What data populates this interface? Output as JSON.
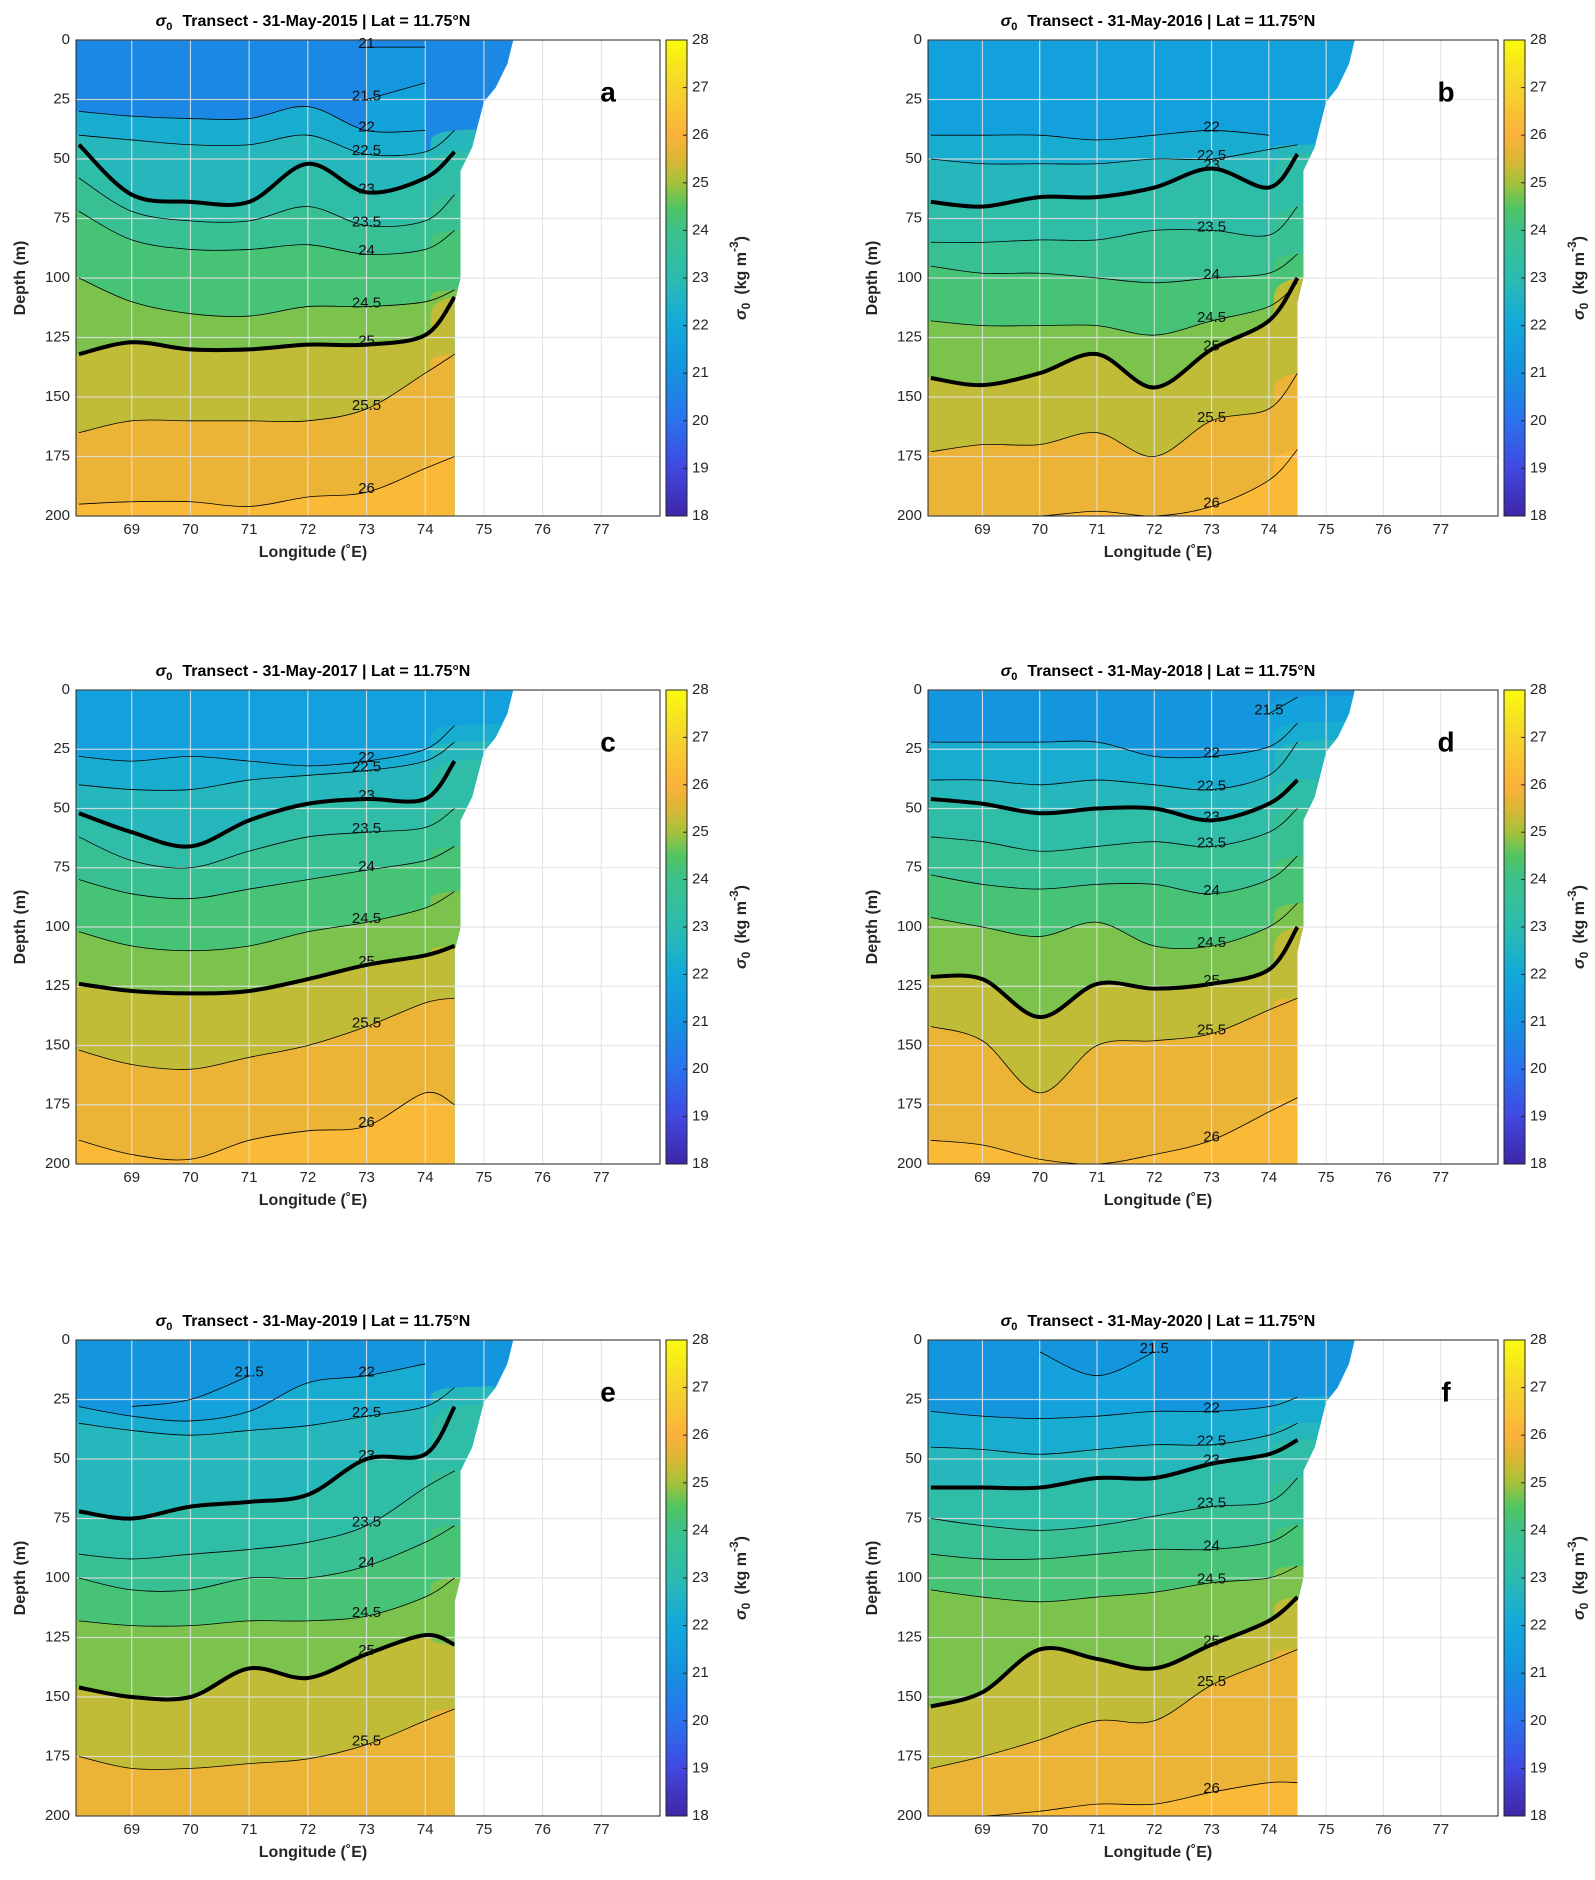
{
  "chart_data": [
    {
      "type": "contour",
      "title_symbol": "σ",
      "title_subscript": "0",
      "title": "Transect - 31-May-2015 | Lat = 11.75°N",
      "panel": "a",
      "xlabel": "Longitude (˚E)",
      "ylabel": "Depth (m)",
      "colorbar_label": [
        "σ",
        "0",
        "(kg m",
        "-3",
        ")"
      ],
      "colormap": "parula",
      "x": [
        68.1,
        69,
        70,
        71,
        72,
        73,
        74,
        74.5
      ],
      "xlim": [
        68.05,
        78
      ],
      "xticks": [
        69,
        70,
        71,
        72,
        73,
        74,
        75,
        76,
        77
      ],
      "ylim": [
        0,
        200
      ],
      "y_reversed": true,
      "yticks": [
        0,
        25,
        50,
        75,
        100,
        125,
        150,
        175,
        200
      ],
      "grid": true,
      "clim": [
        18,
        28
      ],
      "cticks": [
        18,
        19,
        20,
        21,
        22,
        23,
        24,
        25,
        26,
        27,
        28
      ],
      "contours": [
        {
          "level": 21,
          "values": [
            null,
            null,
            null,
            null,
            null,
            3,
            3,
            null
          ]
        },
        {
          "level": 21.5,
          "values": [
            null,
            null,
            null,
            null,
            null,
            25,
            18,
            null
          ]
        },
        {
          "level": 22,
          "values": [
            30,
            32,
            33,
            33,
            28,
            38,
            38,
            null
          ]
        },
        {
          "level": 22.5,
          "values": [
            40,
            42,
            44,
            44,
            40,
            48,
            47,
            38
          ]
        },
        {
          "level": 23,
          "bold": true,
          "values": [
            44,
            65,
            68,
            68,
            52,
            64,
            58,
            47
          ]
        },
        {
          "level": 23.5,
          "values": [
            58,
            72,
            76,
            76,
            70,
            78,
            76,
            65
          ]
        },
        {
          "level": 24,
          "values": [
            72,
            84,
            88,
            88,
            86,
            90,
            88,
            80
          ]
        },
        {
          "level": 24.5,
          "values": [
            100,
            110,
            115,
            116,
            112,
            112,
            110,
            105
          ]
        },
        {
          "level": 25,
          "bold": true,
          "values": [
            132,
            127,
            130,
            130,
            128,
            128,
            124,
            108
          ]
        },
        {
          "level": 25.5,
          "values": [
            165,
            160,
            160,
            160,
            160,
            155,
            140,
            132
          ]
        },
        {
          "level": 26,
          "values": [
            195,
            194,
            194,
            196,
            192,
            190,
            180,
            175
          ]
        }
      ]
    },
    {
      "type": "contour",
      "title_symbol": "σ",
      "title_subscript": "0",
      "title": "Transect - 31-May-2016 | Lat = 11.75°N",
      "panel": "b",
      "xlabel": "Longitude (˚E)",
      "ylabel": "Depth (m)",
      "colorbar_label": [
        "σ",
        "0",
        "(kg m",
        "-3",
        ")"
      ],
      "colormap": "parula",
      "x": [
        68.1,
        69,
        70,
        71,
        72,
        73,
        74,
        74.5
      ],
      "xlim": [
        68.05,
        78
      ],
      "xticks": [
        69,
        70,
        71,
        72,
        73,
        74,
        75,
        76,
        77
      ],
      "ylim": [
        0,
        200
      ],
      "y_reversed": true,
      "yticks": [
        0,
        25,
        50,
        75,
        100,
        125,
        150,
        175,
        200
      ],
      "grid": true,
      "clim": [
        18,
        28
      ],
      "cticks": [
        18,
        19,
        20,
        21,
        22,
        23,
        24,
        25,
        26,
        27,
        28
      ],
      "contours": [
        {
          "level": 22,
          "values": [
            40,
            40,
            40,
            42,
            40,
            38,
            40,
            null
          ]
        },
        {
          "level": 22.5,
          "values": [
            50,
            52,
            52,
            52,
            50,
            50,
            46,
            44
          ]
        },
        {
          "level": 23,
          "bold": true,
          "values": [
            68,
            70,
            66,
            66,
            62,
            54,
            62,
            48
          ]
        },
        {
          "level": 23.5,
          "values": [
            85,
            85,
            84,
            84,
            80,
            80,
            82,
            70
          ]
        },
        {
          "level": 24,
          "values": [
            95,
            98,
            98,
            100,
            102,
            100,
            98,
            90
          ]
        },
        {
          "level": 24.5,
          "values": [
            118,
            120,
            120,
            120,
            124,
            118,
            112,
            102
          ]
        },
        {
          "level": 25,
          "bold": true,
          "values": [
            142,
            145,
            140,
            132,
            146,
            130,
            118,
            100
          ]
        },
        {
          "level": 25.5,
          "values": [
            173,
            170,
            170,
            165,
            175,
            160,
            155,
            140
          ]
        },
        {
          "level": 26,
          "values": [
            200,
            200,
            200,
            198,
            200,
            196,
            185,
            172
          ]
        }
      ]
    },
    {
      "type": "contour",
      "title_symbol": "σ",
      "title_subscript": "0",
      "title": "Transect - 31-May-2017 | Lat = 11.75°N",
      "panel": "c",
      "xlabel": "Longitude (˚E)",
      "ylabel": "Depth (m)",
      "colorbar_label": [
        "σ",
        "0",
        "(kg m",
        "-3",
        ")"
      ],
      "colormap": "parula",
      "x": [
        68.1,
        69,
        70,
        71,
        72,
        73,
        74,
        74.5
      ],
      "xlim": [
        68.05,
        78
      ],
      "xticks": [
        69,
        70,
        71,
        72,
        73,
        74,
        75,
        76,
        77
      ],
      "ylim": [
        0,
        200
      ],
      "y_reversed": true,
      "yticks": [
        0,
        25,
        50,
        75,
        100,
        125,
        150,
        175,
        200
      ],
      "grid": true,
      "clim": [
        18,
        28
      ],
      "cticks": [
        18,
        19,
        20,
        21,
        22,
        23,
        24,
        25,
        26,
        27,
        28
      ],
      "contours": [
        {
          "level": 22,
          "values": [
            28,
            30,
            28,
            30,
            32,
            30,
            25,
            15
          ]
        },
        {
          "level": 22.5,
          "values": [
            40,
            42,
            42,
            38,
            36,
            34,
            30,
            22
          ]
        },
        {
          "level": 23,
          "bold": true,
          "values": [
            52,
            60,
            66,
            55,
            48,
            46,
            46,
            30
          ]
        },
        {
          "level": 23.5,
          "values": [
            62,
            72,
            75,
            68,
            62,
            60,
            58,
            50
          ]
        },
        {
          "level": 24,
          "values": [
            80,
            86,
            88,
            84,
            80,
            76,
            72,
            66
          ]
        },
        {
          "level": 24.5,
          "values": [
            102,
            108,
            110,
            108,
            102,
            98,
            92,
            85
          ]
        },
        {
          "level": 25,
          "bold": true,
          "values": [
            124,
            127,
            128,
            127,
            122,
            116,
            112,
            108
          ]
        },
        {
          "level": 25.5,
          "values": [
            152,
            158,
            160,
            155,
            150,
            142,
            132,
            130
          ]
        },
        {
          "level": 26,
          "values": [
            190,
            196,
            198,
            190,
            186,
            184,
            170,
            175
          ]
        }
      ]
    },
    {
      "type": "contour",
      "title_symbol": "σ",
      "title_subscript": "0",
      "title": "Transect - 31-May-2018 | Lat = 11.75°N",
      "panel": "d",
      "xlabel": "Longitude (˚E)",
      "ylabel": "Depth (m)",
      "colorbar_label": [
        "σ",
        "0",
        "(kg m",
        "-3",
        ")"
      ],
      "colormap": "parula",
      "x": [
        68.1,
        69,
        70,
        71,
        72,
        73,
        74,
        74.5
      ],
      "xlim": [
        68.05,
        78
      ],
      "xticks": [
        69,
        70,
        71,
        72,
        73,
        74,
        75,
        76,
        77
      ],
      "ylim": [
        0,
        200
      ],
      "y_reversed": true,
      "yticks": [
        0,
        25,
        50,
        75,
        100,
        125,
        150,
        175,
        200
      ],
      "grid": true,
      "clim": [
        18,
        28
      ],
      "cticks": [
        18,
        19,
        20,
        21,
        22,
        23,
        24,
        25,
        26,
        27,
        28
      ],
      "contours": [
        {
          "level": 21.5,
          "values": [
            null,
            null,
            null,
            null,
            null,
            null,
            10,
            3
          ]
        },
        {
          "level": 22,
          "values": [
            22,
            22,
            22,
            22,
            28,
            28,
            24,
            14
          ]
        },
        {
          "level": 22.5,
          "values": [
            38,
            38,
            40,
            38,
            40,
            42,
            36,
            22
          ]
        },
        {
          "level": 23,
          "bold": true,
          "values": [
            46,
            48,
            52,
            50,
            50,
            55,
            48,
            38
          ]
        },
        {
          "level": 23.5,
          "values": [
            62,
            64,
            68,
            66,
            64,
            66,
            60,
            50
          ]
        },
        {
          "level": 24,
          "values": [
            78,
            82,
            84,
            82,
            82,
            86,
            80,
            70
          ]
        },
        {
          "level": 24.5,
          "values": [
            96,
            100,
            104,
            98,
            108,
            108,
            100,
            90
          ]
        },
        {
          "level": 25,
          "bold": true,
          "values": [
            121,
            122,
            138,
            124,
            126,
            124,
            118,
            100
          ]
        },
        {
          "level": 25.5,
          "values": [
            142,
            148,
            170,
            150,
            148,
            145,
            135,
            130
          ]
        },
        {
          "level": 26,
          "values": [
            190,
            192,
            198,
            200,
            196,
            190,
            178,
            172
          ]
        }
      ]
    },
    {
      "type": "contour",
      "title_symbol": "σ",
      "title_subscript": "0",
      "title": "Transect - 31-May-2019 | Lat = 11.75°N",
      "panel": "e",
      "xlabel": "Longitude (˚E)",
      "ylabel": "Depth (m)",
      "colorbar_label": [
        "σ",
        "0",
        "(kg m",
        "-3",
        ")"
      ],
      "colormap": "parula",
      "x": [
        68.1,
        69,
        70,
        71,
        72,
        73,
        74,
        74.5
      ],
      "xlim": [
        68.05,
        78
      ],
      "xticks": [
        69,
        70,
        71,
        72,
        73,
        74,
        75,
        76,
        77
      ],
      "ylim": [
        0,
        200
      ],
      "y_reversed": true,
      "yticks": [
        0,
        25,
        50,
        75,
        100,
        125,
        150,
        175,
        200
      ],
      "grid": true,
      "clim": [
        18,
        28
      ],
      "cticks": [
        18,
        19,
        20,
        21,
        22,
        23,
        24,
        25,
        26,
        27,
        28
      ],
      "contours": [
        {
          "level": 21.5,
          "values": [
            null,
            28,
            25,
            15,
            null,
            null,
            null,
            null
          ]
        },
        {
          "level": 22,
          "values": [
            28,
            32,
            34,
            30,
            18,
            15,
            10,
            null
          ]
        },
        {
          "level": 22.5,
          "values": [
            35,
            38,
            40,
            38,
            36,
            32,
            28,
            20
          ]
        },
        {
          "level": 23,
          "bold": true,
          "values": [
            72,
            75,
            70,
            68,
            65,
            50,
            48,
            28
          ]
        },
        {
          "level": 23.5,
          "values": [
            90,
            92,
            90,
            88,
            85,
            78,
            62,
            55
          ]
        },
        {
          "level": 24,
          "values": [
            100,
            105,
            105,
            100,
            100,
            95,
            85,
            78
          ]
        },
        {
          "level": 24.5,
          "values": [
            118,
            120,
            120,
            118,
            118,
            116,
            108,
            100
          ]
        },
        {
          "level": 25,
          "bold": true,
          "values": [
            146,
            150,
            150,
            138,
            142,
            132,
            124,
            128
          ]
        },
        {
          "level": 25.5,
          "values": [
            175,
            180,
            180,
            178,
            176,
            170,
            160,
            155
          ]
        }
      ]
    },
    {
      "type": "contour",
      "title_symbol": "σ",
      "title_subscript": "0",
      "title": "Transect - 31-May-2020 | Lat = 11.75°N",
      "panel": "f",
      "xlabel": "Longitude (˚E)",
      "ylabel": "Depth (m)",
      "colorbar_label": [
        "σ",
        "0",
        "(kg m",
        "-3",
        ")"
      ],
      "colormap": "parula",
      "x": [
        68.1,
        69,
        70,
        71,
        72,
        73,
        74,
        74.5
      ],
      "xlim": [
        68.05,
        78
      ],
      "xticks": [
        69,
        70,
        71,
        72,
        73,
        74,
        75,
        76,
        77
      ],
      "ylim": [
        0,
        200
      ],
      "y_reversed": true,
      "yticks": [
        0,
        25,
        50,
        75,
        100,
        125,
        150,
        175,
        200
      ],
      "grid": true,
      "clim": [
        18,
        28
      ],
      "cticks": [
        18,
        19,
        20,
        21,
        22,
        23,
        24,
        25,
        26,
        27,
        28
      ],
      "contours": [
        {
          "level": 21.5,
          "values": [
            null,
            null,
            5,
            15,
            5,
            null,
            null,
            null
          ]
        },
        {
          "level": 22,
          "values": [
            30,
            32,
            33,
            32,
            30,
            30,
            28,
            24
          ]
        },
        {
          "level": 22.5,
          "values": [
            45,
            46,
            48,
            46,
            44,
            44,
            40,
            35
          ]
        },
        {
          "level": 23,
          "bold": true,
          "values": [
            62,
            62,
            62,
            58,
            58,
            52,
            48,
            42
          ]
        },
        {
          "level": 23.5,
          "values": [
            75,
            78,
            80,
            78,
            74,
            70,
            68,
            58
          ]
        },
        {
          "level": 24,
          "values": [
            90,
            92,
            92,
            90,
            88,
            88,
            85,
            78
          ]
        },
        {
          "level": 24.5,
          "values": [
            105,
            108,
            110,
            108,
            106,
            102,
            100,
            95
          ]
        },
        {
          "level": 25,
          "bold": true,
          "values": [
            154,
            148,
            130,
            134,
            138,
            128,
            118,
            108
          ]
        },
        {
          "level": 25.5,
          "values": [
            180,
            175,
            168,
            160,
            160,
            145,
            135,
            130
          ]
        },
        {
          "level": 26,
          "values": [
            200,
            200,
            198,
            195,
            195,
            190,
            186,
            186
          ]
        }
      ]
    }
  ]
}
